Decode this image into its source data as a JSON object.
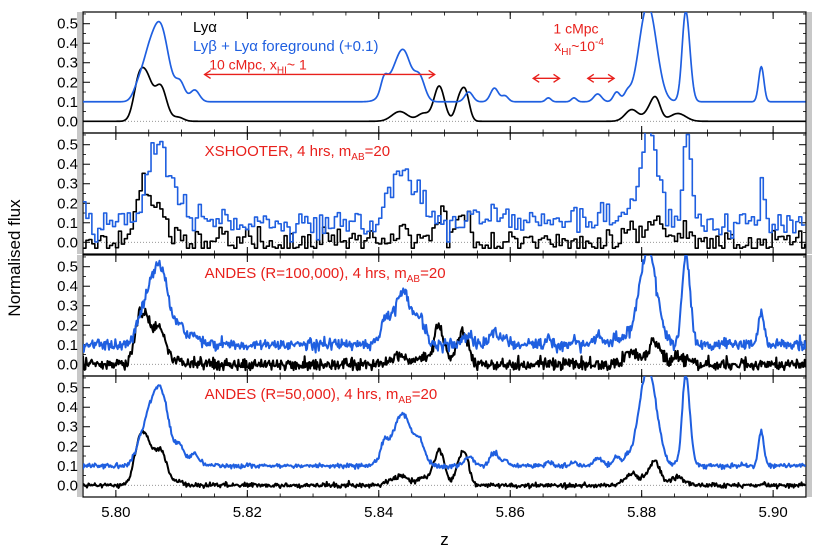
{
  "chart_data": {
    "type": "line",
    "ylabel": "Normalised flux",
    "xlabel": "z",
    "xlim": [
      5.795,
      5.905
    ],
    "ylim": [
      -0.06,
      0.56
    ],
    "x_ticks": [
      "5.80",
      "5.82",
      "5.84",
      "5.86",
      "5.88",
      "5.90"
    ],
    "y_ticks": [
      "0.0",
      "0.1",
      "0.2",
      "0.3",
      "0.4",
      "0.5"
    ],
    "colors": {
      "lya": "#000000",
      "lyb": "#1f5fe0",
      "annotation": "#e8201c",
      "reference": "#888888"
    },
    "panels": [
      {
        "title": "",
        "legend": [
          {
            "label": "Lyα",
            "color": "#000000"
          },
          {
            "label": "Lyβ + Lyα foreground (+0.1)",
            "color": "#1f5fe0"
          }
        ],
        "series": [
          {
            "name": "Lyα",
            "baseline": 0.0,
            "noise": 0.0,
            "style": "line"
          },
          {
            "name": "Lyβ + Lyα foreground (+0.1)",
            "baseline": 0.1,
            "noise": 0.0,
            "style": "line"
          }
        ]
      },
      {
        "title": "XSHOOTER, 4 hrs, m_AB=20",
        "series": [
          {
            "name": "Lyα",
            "baseline": 0.0,
            "noise": 0.035,
            "style": "step"
          },
          {
            "name": "Lyβ + Lyα foreground (+0.1)",
            "baseline": 0.1,
            "noise": 0.035,
            "style": "step"
          }
        ]
      },
      {
        "title": "ANDES (R=100,000), 4 hrs, m_AB=20",
        "series": [
          {
            "name": "Lyα",
            "baseline": 0.0,
            "noise": 0.015,
            "style": "line"
          },
          {
            "name": "Lyβ + Lyα foreground (+0.1)",
            "baseline": 0.1,
            "noise": 0.015,
            "style": "line"
          }
        ]
      },
      {
        "title": "ANDES (R=50,000), 4 hrs, m_AB=20",
        "series": [
          {
            "name": "Lyα",
            "baseline": 0.0,
            "noise": 0.006,
            "style": "line"
          },
          {
            "name": "Lyβ + Lyα foreground (+0.1)",
            "baseline": 0.1,
            "noise": 0.006,
            "style": "line"
          }
        ]
      }
    ],
    "lya_peaks": [
      [
        5.8035,
        0.2,
        0.0008
      ],
      [
        5.8048,
        0.18,
        0.0008
      ],
      [
        5.8068,
        0.18,
        0.0009
      ],
      [
        5.8095,
        0.02,
        0.0008
      ],
      [
        5.8432,
        0.05,
        0.0012
      ],
      [
        5.8468,
        0.04,
        0.0009
      ],
      [
        5.8492,
        0.18,
        0.0008
      ],
      [
        5.8522,
        0.1,
        0.0006
      ],
      [
        5.8532,
        0.14,
        0.0006
      ],
      [
        5.8785,
        0.06,
        0.001
      ],
      [
        5.8812,
        0.05,
        0.0008
      ],
      [
        5.8822,
        0.1,
        0.0007
      ],
      [
        5.8855,
        0.04,
        0.0012
      ]
    ],
    "lyb_peaks": [
      [
        5.8035,
        0.08,
        0.0008
      ],
      [
        5.8048,
        0.1,
        0.0008
      ],
      [
        5.8064,
        0.3,
        0.0013
      ],
      [
        5.8072,
        0.12,
        0.0012
      ],
      [
        5.8098,
        0.09,
        0.0007
      ],
      [
        5.812,
        0.06,
        0.0007
      ],
      [
        5.8408,
        0.07,
        0.0005
      ],
      [
        5.8428,
        0.16,
        0.0015
      ],
      [
        5.844,
        0.14,
        0.001
      ],
      [
        5.8462,
        0.12,
        0.0008
      ],
      [
        5.8537,
        0.05,
        0.0006
      ],
      [
        5.8576,
        0.07,
        0.0006
      ],
      [
        5.8592,
        0.03,
        0.0005
      ],
      [
        5.8658,
        0.02,
        0.0004
      ],
      [
        5.8697,
        0.02,
        0.0004
      ],
      [
        5.8733,
        0.04,
        0.0006
      ],
      [
        5.8762,
        0.05,
        0.0005
      ],
      [
        5.8778,
        0.04,
        0.0005
      ],
      [
        5.8805,
        0.3,
        0.0012
      ],
      [
        5.8815,
        0.24,
        0.0012
      ],
      [
        5.8868,
        0.4,
        0.0006
      ],
      [
        5.8982,
        0.18,
        0.0004
      ],
      [
        5.8865,
        0.08,
        0.0004
      ]
    ],
    "annotations": [
      {
        "text": "10 cMpc, x",
        "sub": "HI",
        "after": "~ 1",
        "z_range": [
          5.8135,
          5.8485
        ],
        "flux": 0.265,
        "arrow_flux": 0.24
      },
      {
        "text": "1 cMpc",
        "flux": 0.45,
        "z": 5.87
      },
      {
        "text": "x",
        "sub": "HI",
        "after": "~10",
        "sup": "-4",
        "flux": 0.36,
        "z": 5.87
      },
      {
        "z_range": [
          5.8635,
          5.8675
        ],
        "arrow_flux": 0.22
      },
      {
        "z_range": [
          5.8718,
          5.8758
        ],
        "arrow_flux": 0.22
      }
    ]
  }
}
